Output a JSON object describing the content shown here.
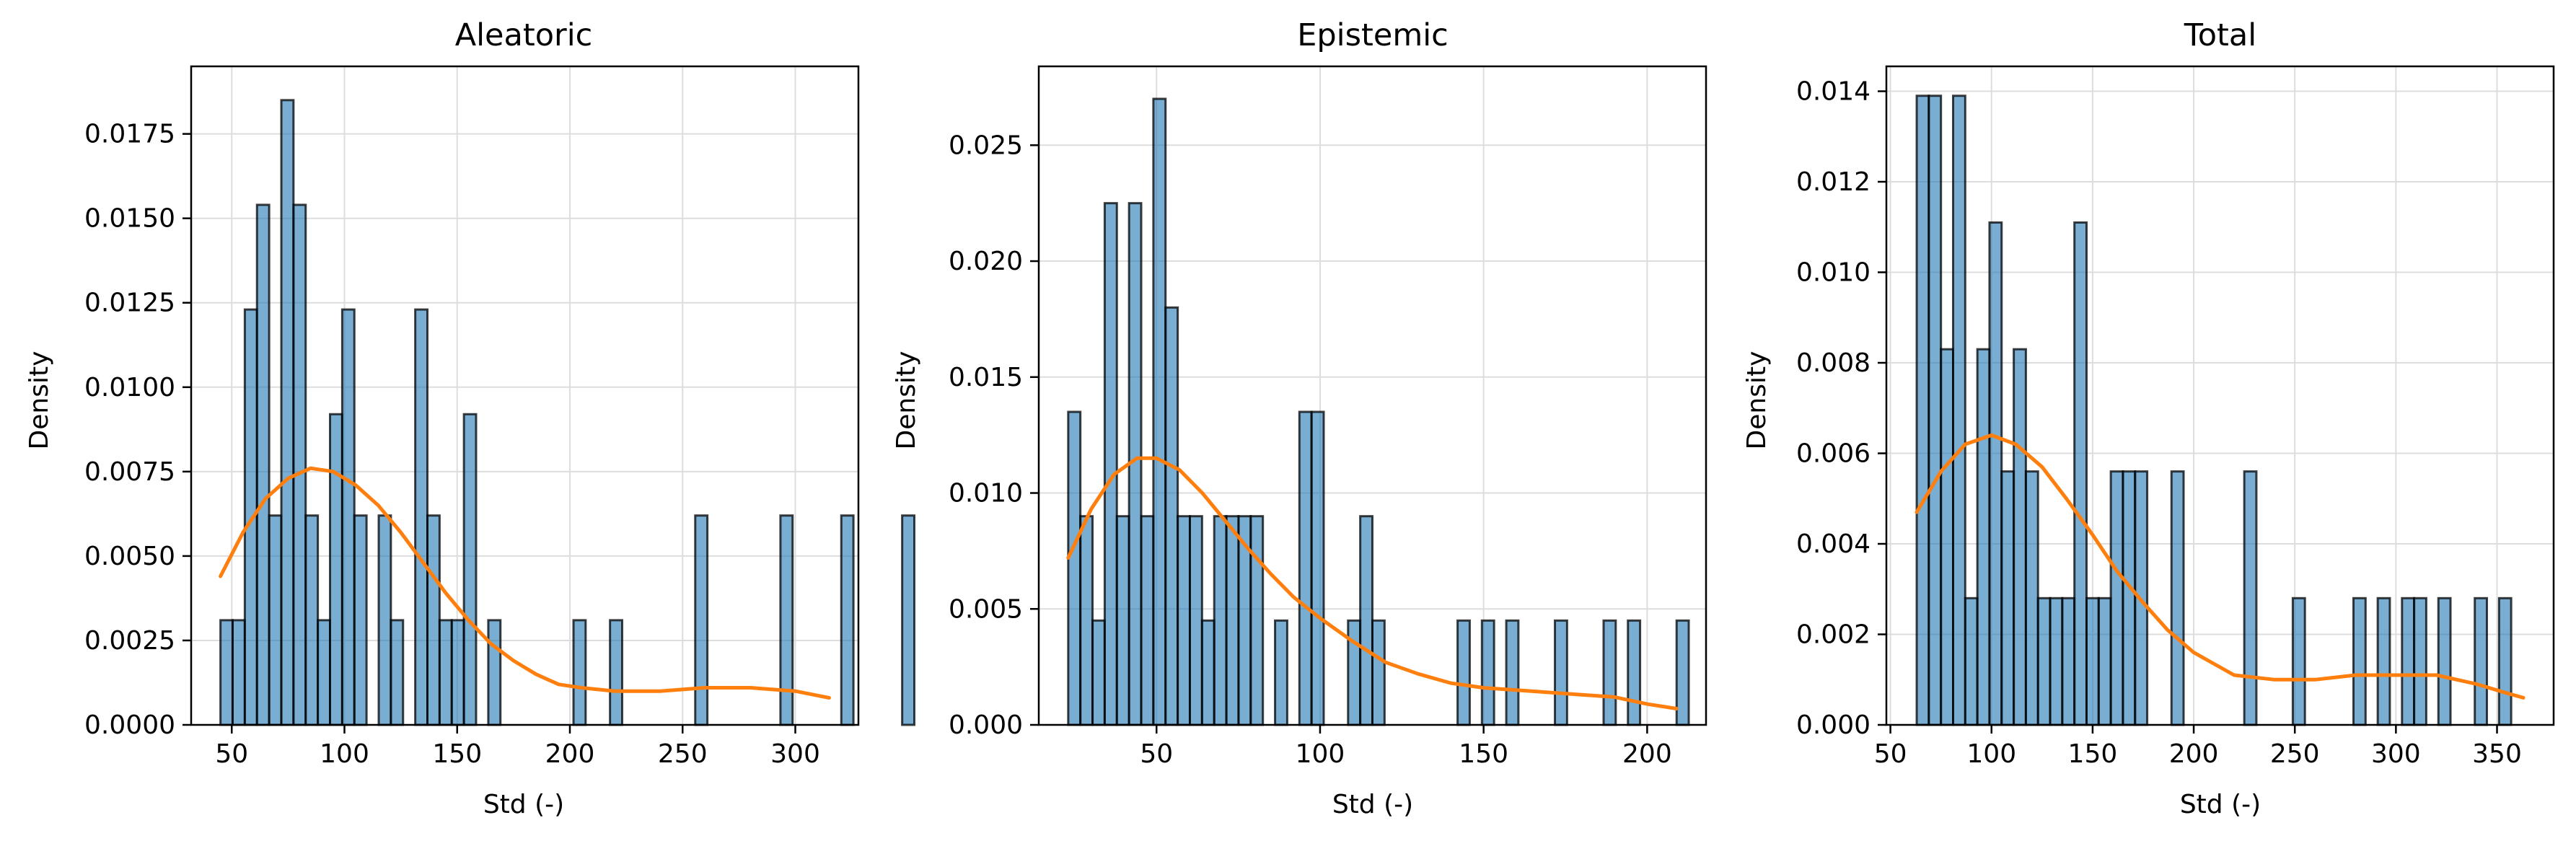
{
  "figure": {
    "background": "#ffffff",
    "bar_color": "#1f77b4",
    "bar_opacity": 0.6,
    "bar_edge": "#000000",
    "kde_color": "#ff7f0e",
    "grid_color": "#dddddd"
  },
  "chart_data": [
    {
      "type": "bar",
      "title": "Aleatoric",
      "xlabel": "Std (-)",
      "ylabel": "Density",
      "xlim": [
        32,
        328
      ],
      "ylim": [
        0,
        0.0195
      ],
      "xticks": [
        50,
        100,
        150,
        200,
        250,
        300
      ],
      "yticks": [
        0.0,
        0.0025,
        0.005,
        0.0075,
        0.01,
        0.0125,
        0.015,
        0.0175
      ],
      "ytick_labels": [
        "0.0000",
        "0.0025",
        "0.0050",
        "0.0075",
        "0.0100",
        "0.0125",
        "0.0150",
        "0.0175"
      ],
      "grid": true,
      "bin_start": 45.0,
      "bin_width": 5.4,
      "bar_values": [
        0.0031,
        0.0031,
        0.0123,
        0.0154,
        0.0062,
        0.0185,
        0.0154,
        0.0062,
        0.0031,
        0.0092,
        0.0123,
        0.0062,
        0,
        0.0062,
        0.0031,
        0,
        0.0123,
        0.0062,
        0.0031,
        0.0031,
        0.0092,
        0,
        0.0031,
        0,
        0,
        0,
        0,
        0,
        0,
        0.0031,
        0,
        0,
        0.0031,
        0,
        0,
        0,
        0,
        0,
        0,
        0.0062,
        0,
        0,
        0,
        0,
        0,
        0,
        0.0062,
        0,
        0,
        0,
        0,
        0.0062,
        0,
        0,
        0,
        0,
        0.0062
      ],
      "kde": {
        "x": [
          45,
          55,
          65,
          75,
          85,
          95,
          105,
          115,
          125,
          135,
          145,
          155,
          165,
          175,
          185,
          195,
          205,
          220,
          240,
          260,
          280,
          300,
          315
        ],
        "y": [
          0.0044,
          0.0057,
          0.0067,
          0.0073,
          0.0076,
          0.0075,
          0.0071,
          0.0065,
          0.0057,
          0.0048,
          0.0039,
          0.0031,
          0.0024,
          0.0019,
          0.0015,
          0.0012,
          0.0011,
          0.001,
          0.001,
          0.0011,
          0.0011,
          0.001,
          0.0008
        ]
      }
    },
    {
      "type": "bar",
      "title": "Epistemic",
      "xlabel": "Std (-)",
      "ylabel": "Density",
      "xlim": [
        14,
        218
      ],
      "ylim": [
        0,
        0.0284
      ],
      "xticks": [
        50,
        100,
        150,
        200
      ],
      "yticks": [
        0.0,
        0.005,
        0.01,
        0.015,
        0.02,
        0.025
      ],
      "ytick_labels": [
        "0.000",
        "0.005",
        "0.010",
        "0.015",
        "0.020",
        "0.025"
      ],
      "grid": true,
      "bin_start": 23.0,
      "bin_width": 3.72,
      "bar_values": [
        0.0135,
        0.009,
        0.0045,
        0.0225,
        0.009,
        0.0225,
        0.009,
        0.027,
        0.018,
        0.009,
        0.009,
        0.0045,
        0.009,
        0.009,
        0.009,
        0.009,
        0,
        0.0045,
        0,
        0.0135,
        0.0135,
        0,
        0,
        0.0045,
        0.009,
        0.0045,
        0,
        0,
        0,
        0,
        0,
        0,
        0.0045,
        0,
        0.0045,
        0,
        0.0045,
        0,
        0,
        0,
        0.0045,
        0,
        0,
        0,
        0.0045,
        0,
        0.0045,
        0,
        0,
        0,
        0.0045
      ],
      "kde": {
        "x": [
          23,
          30,
          37,
          44,
          50,
          57,
          64,
          71,
          78,
          85,
          92,
          100,
          110,
          120,
          130,
          140,
          150,
          160,
          170,
          180,
          190,
          200,
          209
        ],
        "y": [
          0.0072,
          0.0093,
          0.0108,
          0.0115,
          0.0115,
          0.011,
          0.01,
          0.0088,
          0.0076,
          0.0065,
          0.0055,
          0.0046,
          0.0036,
          0.0027,
          0.0022,
          0.0018,
          0.0016,
          0.0015,
          0.0014,
          0.0013,
          0.0012,
          0.0009,
          0.0007
        ]
      }
    },
    {
      "type": "bar",
      "title": "Total",
      "xlabel": "Std (-)",
      "ylabel": "Density",
      "xlim": [
        48,
        378
      ],
      "ylim": [
        0,
        0.01455
      ],
      "xticks": [
        50,
        100,
        150,
        200,
        250,
        300,
        350
      ],
      "yticks": [
        0.0,
        0.002,
        0.004,
        0.006,
        0.008,
        0.01,
        0.012,
        0.014
      ],
      "ytick_labels": [
        "0.000",
        "0.002",
        "0.004",
        "0.006",
        "0.008",
        "0.010",
        "0.012",
        "0.014"
      ],
      "grid": true,
      "bin_start": 63.0,
      "bin_width": 6.0,
      "bar_values": [
        0.0139,
        0.0139,
        0.0083,
        0.0139,
        0.0028,
        0.0083,
        0.0111,
        0.0056,
        0.0083,
        0.0056,
        0.0028,
        0.0028,
        0.0028,
        0.0111,
        0.0028,
        0.0028,
        0.0056,
        0.0056,
        0.0056,
        0,
        0,
        0.0056,
        0,
        0,
        0,
        0,
        0,
        0.0056,
        0,
        0,
        0,
        0.0028,
        0,
        0,
        0,
        0,
        0.0028,
        0,
        0.0028,
        0,
        0.0028,
        0.0028,
        0,
        0.0028,
        0,
        0,
        0.0028,
        0,
        0.0028
      ],
      "kde": {
        "x": [
          63,
          75,
          87,
          100,
          112,
          125,
          137,
          150,
          162,
          175,
          187,
          200,
          220,
          240,
          260,
          280,
          300,
          320,
          340,
          355,
          363
        ],
        "y": [
          0.0047,
          0.0056,
          0.0062,
          0.0064,
          0.0062,
          0.0057,
          0.005,
          0.0042,
          0.0034,
          0.0027,
          0.0021,
          0.0016,
          0.0011,
          0.001,
          0.001,
          0.0011,
          0.0011,
          0.0011,
          0.0009,
          0.0007,
          0.0006
        ]
      }
    }
  ]
}
